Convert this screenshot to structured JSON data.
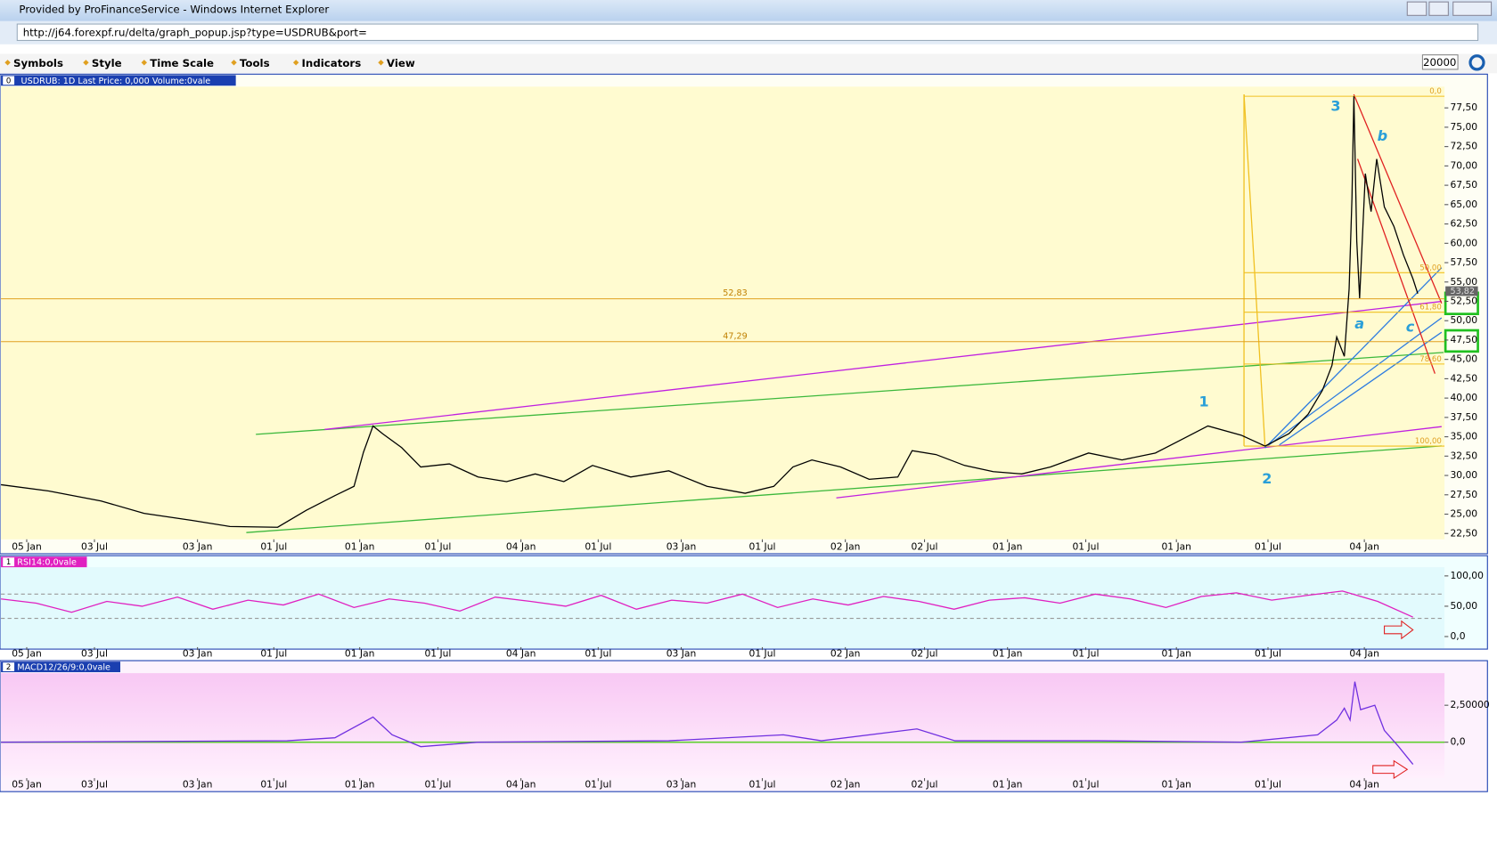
{
  "window": {
    "title": "Provided by ProFinanceService - Windows Internet Explorer",
    "url": "http://j64.forexpf.ru/delta/graph_popup.jsp?type=USDRUB&port="
  },
  "toolbar": {
    "menu": [
      "Symbols",
      "Style",
      "Time Scale",
      "Tools",
      "Indicators",
      "View"
    ],
    "zoom": "20000"
  },
  "chart_data": [
    {
      "type": "line",
      "panel_index": "0",
      "title": "USDRUB: 1D Last Price: 0,000 Volume:0vale",
      "color": "#000000",
      "x": [
        0,
        50,
        105,
        150,
        200,
        240,
        290,
        320,
        350,
        370,
        380,
        390,
        400,
        420,
        440,
        470,
        500,
        530,
        560,
        590,
        620,
        660,
        700,
        740,
        780,
        810,
        830,
        850,
        880,
        910,
        940,
        955,
        980,
        1010,
        1040,
        1070,
        1100,
        1140,
        1175,
        1210,
        1240,
        1265,
        1300,
        1325,
        1350,
        1370,
        1385,
        1395,
        1400,
        1408,
        1413,
        1416,
        1418,
        1421,
        1424,
        1430,
        1436,
        1442,
        1450,
        1460,
        1470,
        1480,
        1485
      ],
      "values": [
        28.8,
        28.0,
        26.7,
        25.1,
        24.2,
        23.4,
        23.3,
        25.5,
        27.4,
        28.6,
        33.0,
        36.4,
        35.4,
        33.6,
        31.1,
        31.5,
        29.8,
        29.2,
        30.2,
        29.2,
        31.3,
        29.8,
        30.6,
        28.6,
        27.7,
        28.6,
        31.1,
        32.0,
        31.1,
        29.5,
        29.8,
        33.2,
        32.7,
        31.3,
        30.5,
        30.2,
        31.1,
        32.9,
        32.0,
        32.9,
        34.8,
        36.4,
        35.2,
        33.8,
        35.4,
        37.9,
        41.0,
        44.2,
        47.9,
        45.4,
        54.1,
        65.9,
        79.0,
        60.3,
        52.9,
        69.0,
        64.1,
        70.9,
        64.7,
        62.2,
        58.5,
        55.4,
        53.5
      ],
      "xlim": [
        0,
        1513
      ],
      "ylim": [
        21.75,
        80.24
      ],
      "xticks": [
        {
          "value": 27,
          "label": "05 Jan"
        },
        {
          "value": 98,
          "label": "03 Jul"
        },
        {
          "value": 206,
          "label": "03 Jan"
        },
        {
          "value": 286,
          "label": "01 Jul"
        },
        {
          "value": 376,
          "label": "01 Jan"
        },
        {
          "value": 458,
          "label": "01 Jul"
        },
        {
          "value": 545,
          "label": "04 Jan"
        },
        {
          "value": 626,
          "label": "01 Jul"
        },
        {
          "value": 713,
          "label": "03 Jan"
        },
        {
          "value": 798,
          "label": "01 Jul"
        },
        {
          "value": 885,
          "label": "02 Jan"
        },
        {
          "value": 968,
          "label": "02 Jul"
        },
        {
          "value": 1055,
          "label": "01 Jan"
        },
        {
          "value": 1137,
          "label": "01 Jul"
        },
        {
          "value": 1232,
          "label": "01 Jan"
        },
        {
          "value": 1328,
          "label": "01 Jul"
        },
        {
          "value": 1429,
          "label": "04 Jan"
        }
      ],
      "yticks": [
        {
          "value": 22.5,
          "label": "22,50"
        },
        {
          "value": 25,
          "label": "25,00"
        },
        {
          "value": 27.5,
          "label": "27,50"
        },
        {
          "value": 30,
          "label": "30,00"
        },
        {
          "value": 32.5,
          "label": "32,50"
        },
        {
          "value": 35,
          "label": "35,00"
        },
        {
          "value": 37.5,
          "label": "37,50"
        },
        {
          "value": 40,
          "label": "40,00"
        },
        {
          "value": 42.5,
          "label": "42,50"
        },
        {
          "value": 45,
          "label": "45,00"
        },
        {
          "value": 47.5,
          "label": "47,50"
        },
        {
          "value": 50,
          "label": "50,00"
        },
        {
          "value": 52.5,
          "label": "52,50"
        },
        {
          "value": 55,
          "label": "55,00"
        },
        {
          "value": 57.5,
          "label": "57,50"
        },
        {
          "value": 60,
          "label": "60,00"
        },
        {
          "value": 62.5,
          "label": "62,50"
        },
        {
          "value": 65,
          "label": "65,00"
        },
        {
          "value": 67.5,
          "label": "67,50"
        },
        {
          "value": 70,
          "label": "70,00"
        },
        {
          "value": 72.5,
          "label": "72,50"
        },
        {
          "value": 75,
          "label": "75,00"
        },
        {
          "value": 77.5,
          "label": "77,50"
        }
      ],
      "levels": [
        {
          "value": 52.83,
          "label": "52,83"
        },
        {
          "value": 47.29,
          "label": "47,29"
        }
      ],
      "fib_levels": [
        {
          "value": 0,
          "label": "0,0",
          "price": 79.0
        },
        {
          "value": 50,
          "label": "50,00",
          "price": 56.2
        },
        {
          "value": 61.8,
          "label": "61,80",
          "price": 51.1
        },
        {
          "value": 78.6,
          "label": "78,60",
          "price": 44.4
        },
        {
          "value": 100,
          "label": "100,00",
          "price": 33.8
        }
      ],
      "last_price": {
        "value": 53.82,
        "label": "53,82"
      },
      "wave_labels": [
        "1",
        "2",
        "3",
        "a",
        "b",
        "c"
      ]
    },
    {
      "type": "line",
      "panel_index": "1",
      "title": "RSI14:0,0vale",
      "color": "#e020c0",
      "x": [
        0,
        37,
        74,
        111,
        148,
        185,
        222,
        259,
        296,
        333,
        370,
        407,
        444,
        481,
        518,
        555,
        592,
        629,
        666,
        703,
        740,
        777,
        814,
        851,
        888,
        925,
        962,
        999,
        1036,
        1073,
        1110,
        1147,
        1184,
        1221,
        1258,
        1295,
        1332,
        1369,
        1406,
        1443,
        1480
      ],
      "values": [
        62,
        55,
        40,
        58,
        50,
        65,
        45,
        60,
        52,
        70,
        48,
        62,
        55,
        42,
        65,
        58,
        50,
        68,
        45,
        60,
        55,
        70,
        48,
        62,
        52,
        66,
        58,
        45,
        60,
        64,
        55,
        70,
        62,
        48,
        66,
        72,
        60,
        68,
        75,
        58,
        32
      ],
      "ylim": [
        -17.5,
        114.3
      ],
      "yticks": [
        {
          "value": 0,
          "label": "0,0"
        },
        {
          "value": 50,
          "label": "50,00"
        },
        {
          "value": 100,
          "label": "100,00"
        }
      ],
      "bands": [
        30,
        70
      ]
    },
    {
      "type": "line",
      "panel_index": "2",
      "title": "MACD12/26/9:0,0vale",
      "color": "#7030e0",
      "x": [
        0,
        300,
        350,
        390,
        410,
        440,
        500,
        700,
        820,
        860,
        960,
        1000,
        1150,
        1300,
        1380,
        1400,
        1408,
        1414,
        1419,
        1425,
        1440,
        1450,
        1465,
        1480
      ],
      "values": [
        0,
        0.1,
        0.3,
        1.7,
        0.5,
        -0.3,
        0,
        0.1,
        0.5,
        0.1,
        0.9,
        0.1,
        0.1,
        0,
        0.5,
        1.5,
        2.3,
        1.5,
        4.1,
        2.2,
        2.5,
        0.8,
        -0.3,
        -1.5
      ],
      "ylim": [
        -2.43,
        4.67
      ],
      "yticks": [
        {
          "value": 0,
          "label": "0,0"
        },
        {
          "value": 2.5,
          "label": "2,50000"
        }
      ]
    }
  ]
}
